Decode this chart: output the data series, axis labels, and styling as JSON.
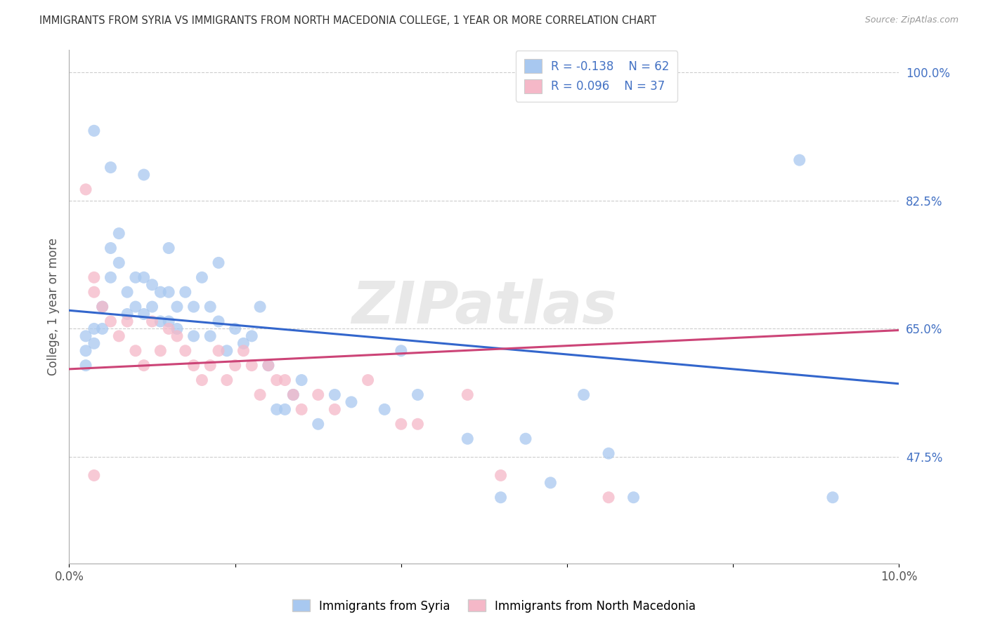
{
  "title": "IMMIGRANTS FROM SYRIA VS IMMIGRANTS FROM NORTH MACEDONIA COLLEGE, 1 YEAR OR MORE CORRELATION CHART",
  "source": "Source: ZipAtlas.com",
  "ylabel": "College, 1 year or more",
  "legend_label_1": "Immigrants from Syria",
  "legend_label_2": "Immigrants from North Macedonia",
  "R1": -0.138,
  "N1": 62,
  "R2": 0.096,
  "N2": 37,
  "xlim": [
    0.0,
    0.1
  ],
  "ylim": [
    0.33,
    1.03
  ],
  "xticks": [
    0.0,
    0.02,
    0.04,
    0.06,
    0.08,
    0.1
  ],
  "xticklabels": [
    "0.0%",
    "",
    "",
    "",
    "",
    "10.0%"
  ],
  "yticks_right": [
    0.475,
    0.65,
    0.825,
    1.0
  ],
  "ytick_labels_right": [
    "47.5%",
    "65.0%",
    "82.5%",
    "100.0%"
  ],
  "color_blue": "#a8c8f0",
  "color_pink": "#f5b8c8",
  "line_color_blue": "#3366cc",
  "line_color_pink": "#cc4477",
  "background_color": "#ffffff",
  "watermark": "ZIPatlas",
  "blue_line_x0": 0.0,
  "blue_line_y0": 0.675,
  "blue_line_x1": 0.1,
  "blue_line_y1": 0.575,
  "pink_line_x0": 0.0,
  "pink_line_y0": 0.595,
  "pink_line_x1": 0.1,
  "pink_line_y1": 0.648,
  "blue_x": [
    0.002,
    0.002,
    0.002,
    0.003,
    0.003,
    0.004,
    0.004,
    0.005,
    0.005,
    0.006,
    0.006,
    0.007,
    0.007,
    0.008,
    0.008,
    0.009,
    0.009,
    0.01,
    0.01,
    0.011,
    0.011,
    0.012,
    0.012,
    0.013,
    0.013,
    0.014,
    0.015,
    0.015,
    0.016,
    0.017,
    0.017,
    0.018,
    0.019,
    0.02,
    0.021,
    0.022,
    0.023,
    0.024,
    0.025,
    0.026,
    0.027,
    0.028,
    0.03,
    0.032,
    0.034,
    0.038,
    0.04,
    0.042,
    0.048,
    0.052,
    0.055,
    0.058,
    0.062,
    0.065,
    0.068,
    0.003,
    0.005,
    0.009,
    0.012,
    0.018,
    0.088,
    0.092
  ],
  "blue_y": [
    0.64,
    0.62,
    0.6,
    0.65,
    0.63,
    0.68,
    0.65,
    0.76,
    0.72,
    0.78,
    0.74,
    0.7,
    0.67,
    0.72,
    0.68,
    0.72,
    0.67,
    0.71,
    0.68,
    0.7,
    0.66,
    0.7,
    0.66,
    0.68,
    0.65,
    0.7,
    0.68,
    0.64,
    0.72,
    0.68,
    0.64,
    0.66,
    0.62,
    0.65,
    0.63,
    0.64,
    0.68,
    0.6,
    0.54,
    0.54,
    0.56,
    0.58,
    0.52,
    0.56,
    0.55,
    0.54,
    0.62,
    0.56,
    0.5,
    0.42,
    0.5,
    0.44,
    0.56,
    0.48,
    0.42,
    0.92,
    0.87,
    0.86,
    0.76,
    0.74,
    0.88,
    0.42
  ],
  "pink_x": [
    0.002,
    0.003,
    0.003,
    0.004,
    0.005,
    0.006,
    0.007,
    0.008,
    0.009,
    0.01,
    0.011,
    0.012,
    0.013,
    0.014,
    0.015,
    0.016,
    0.017,
    0.018,
    0.019,
    0.02,
    0.021,
    0.022,
    0.023,
    0.024,
    0.025,
    0.026,
    0.027,
    0.028,
    0.03,
    0.032,
    0.036,
    0.04,
    0.042,
    0.048,
    0.052,
    0.065,
    0.003
  ],
  "pink_y": [
    0.84,
    0.72,
    0.7,
    0.68,
    0.66,
    0.64,
    0.66,
    0.62,
    0.6,
    0.66,
    0.62,
    0.65,
    0.64,
    0.62,
    0.6,
    0.58,
    0.6,
    0.62,
    0.58,
    0.6,
    0.62,
    0.6,
    0.56,
    0.6,
    0.58,
    0.58,
    0.56,
    0.54,
    0.56,
    0.54,
    0.58,
    0.52,
    0.52,
    0.56,
    0.45,
    0.42,
    0.45
  ]
}
